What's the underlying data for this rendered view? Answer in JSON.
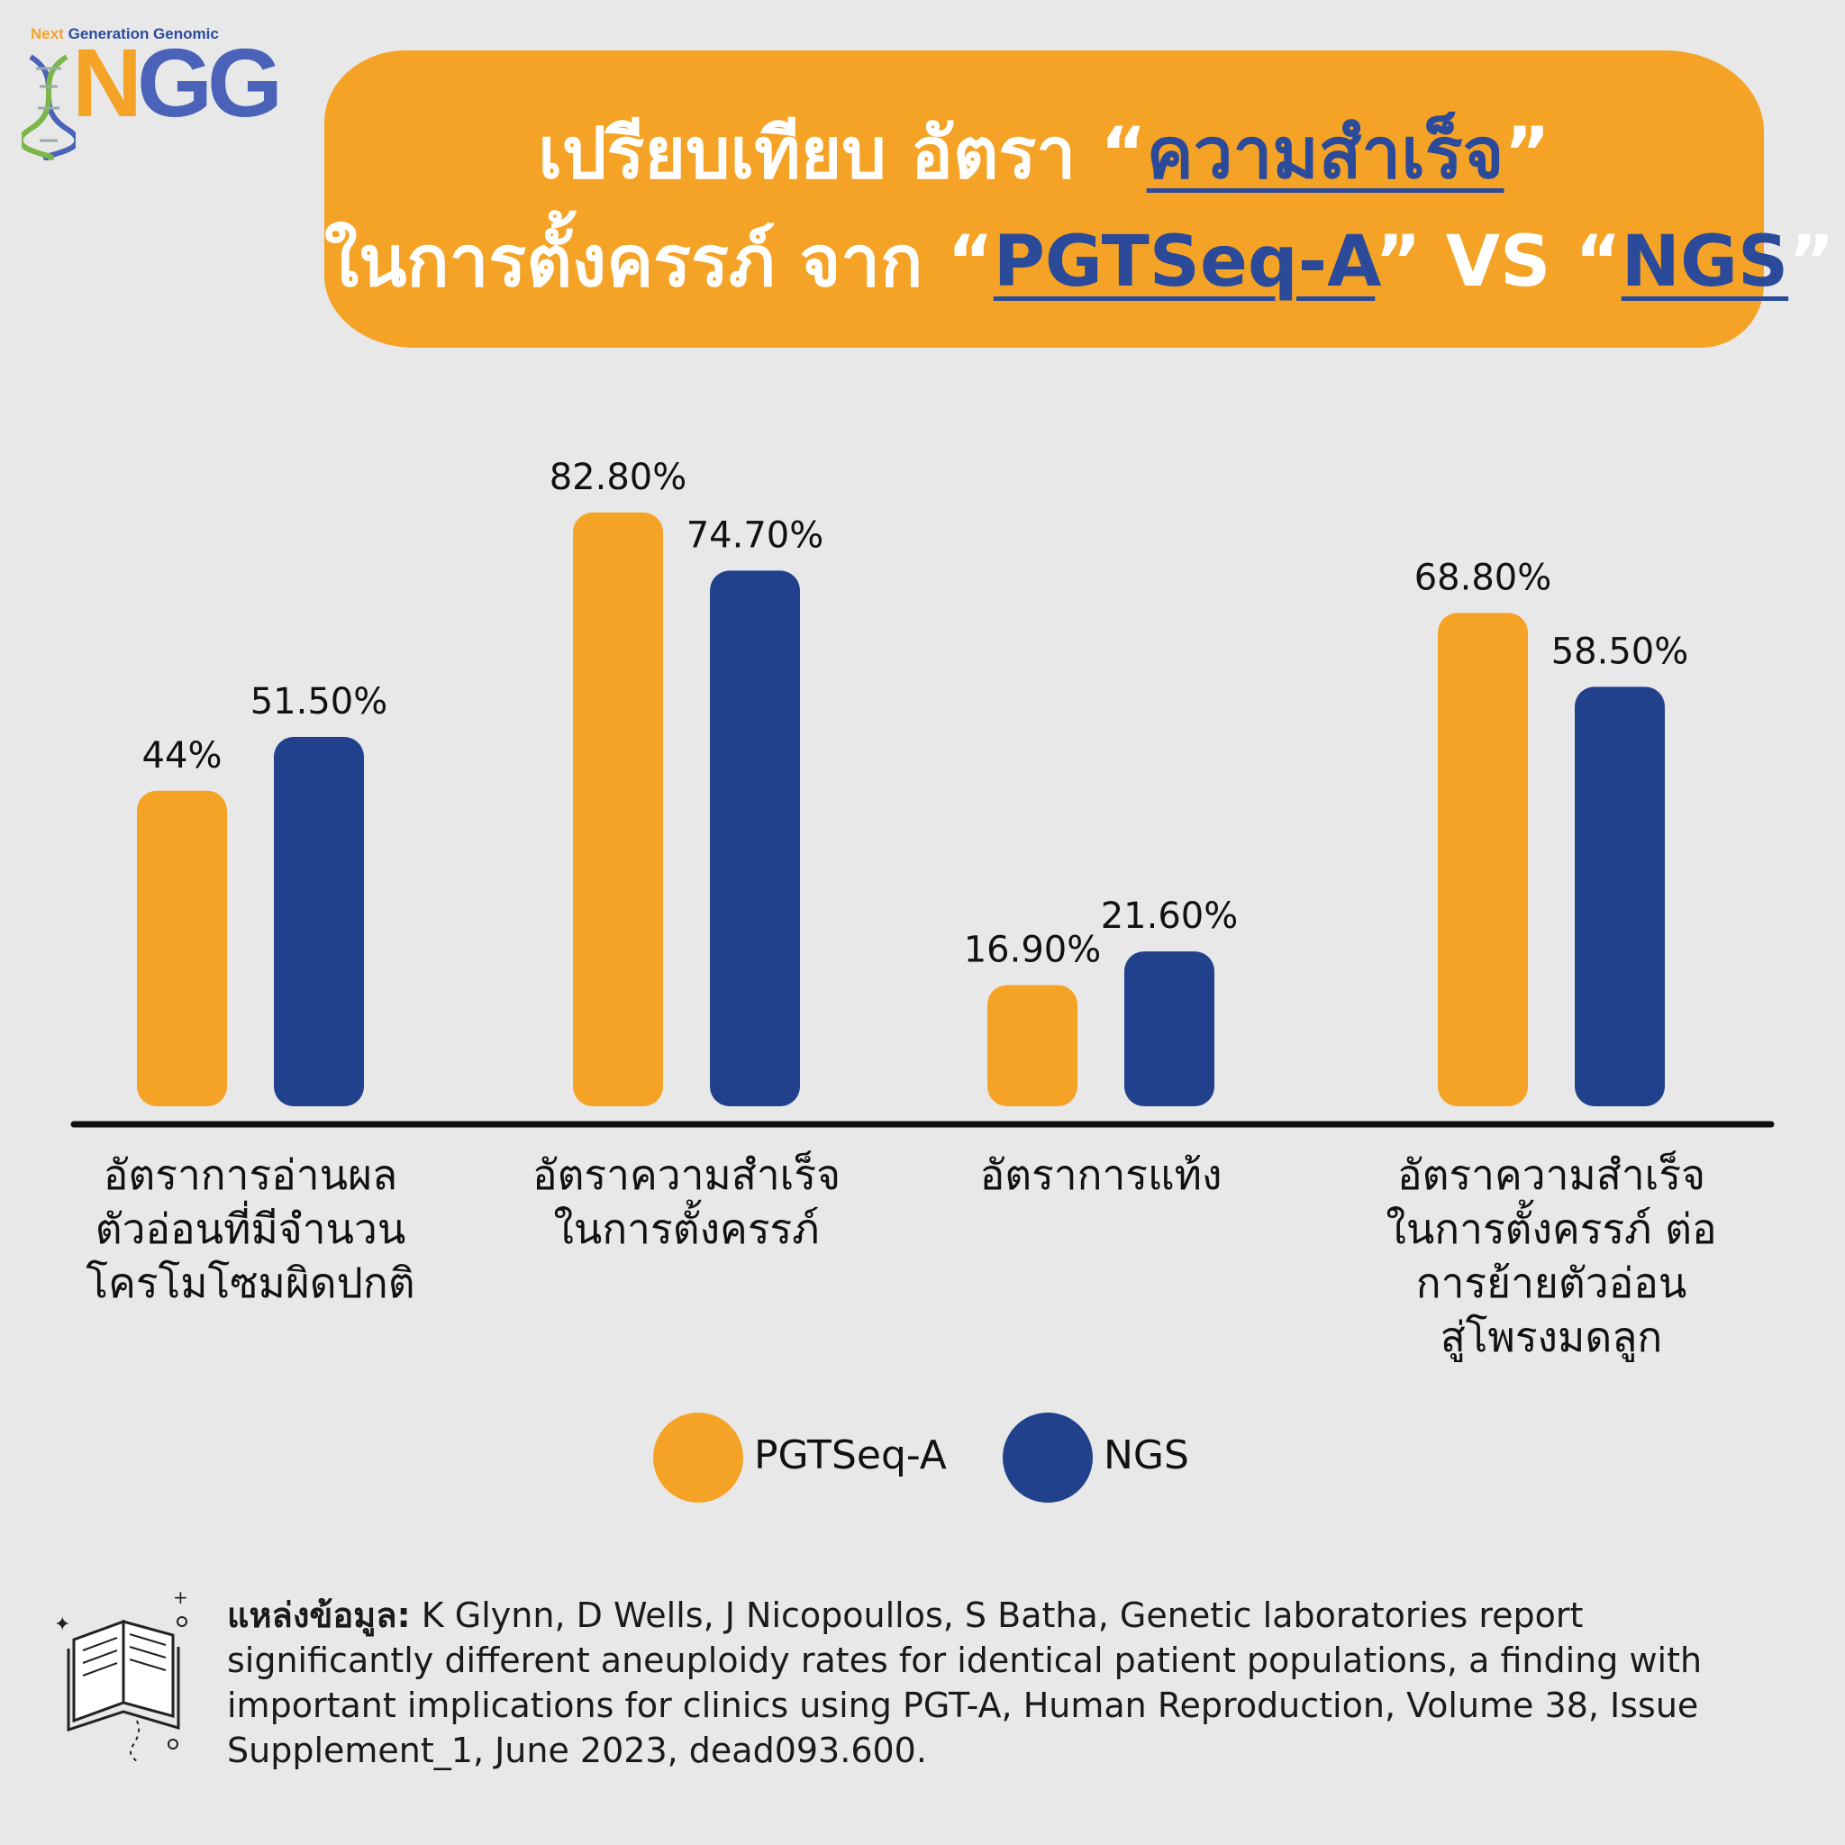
{
  "logo": {
    "tagline_1": "Next",
    "tagline_2": "Generation Genomic",
    "mark_n": "N",
    "mark_gg": "GG"
  },
  "title": {
    "line1_pre": "เปรียบเทียบ อัตรา “",
    "line1_hl": "ความสำเร็จ",
    "line1_post": "”",
    "line2_pre": "ในการตั้งครรภ์  จาก “",
    "line2_hl1": "PGTSeq-A",
    "line2_mid": "” VS “",
    "line2_hl2": "NGS",
    "line2_post": "”"
  },
  "colors": {
    "pgtseq": "#f5a326",
    "ngs": "#22418c",
    "background": "#e8e8e9"
  },
  "chart_data": {
    "type": "bar",
    "categories": [
      "อัตราการอ่านผล\nตัวอ่อนที่มีจำนวน\nโครโมโซมผิดปกติ",
      "อัตราความสำเร็จ\nในการตั้งครรภ์",
      "อัตราการแท้ง",
      "อัตราความสำเร็จ\nในการตั้งครรภ์ ต่อ\nการย้ายตัวอ่อน\nสู่โพรงมดลูก"
    ],
    "series": [
      {
        "name": "PGTSeq-A",
        "values": [
          44,
          82.8,
          16.9,
          68.8
        ],
        "labels": [
          "44%",
          "82.80%",
          "16.90%",
          "68.80%"
        ]
      },
      {
        "name": "NGS",
        "values": [
          51.5,
          74.7,
          21.6,
          58.5
        ],
        "labels": [
          "51.50%",
          "74.70%",
          "21.60%",
          "58.50%"
        ]
      }
    ],
    "ylim": [
      0,
      100
    ],
    "grid": false,
    "legend": "bottom-center"
  },
  "legend": {
    "pgtseq": "PGTSeq-A",
    "ngs": "NGS"
  },
  "source": {
    "label": "แหล่งข้อมูล:",
    "text": " K Glynn, D Wells, J Nicopoullos, S Batha, Genetic laboratories report significantly different aneuploidy rates for identical patient populations, a finding with important implications for clinics using PGT-A, Human Reproduction, Volume 38, Issue Supplement_1, June 2023, dead093.600."
  }
}
